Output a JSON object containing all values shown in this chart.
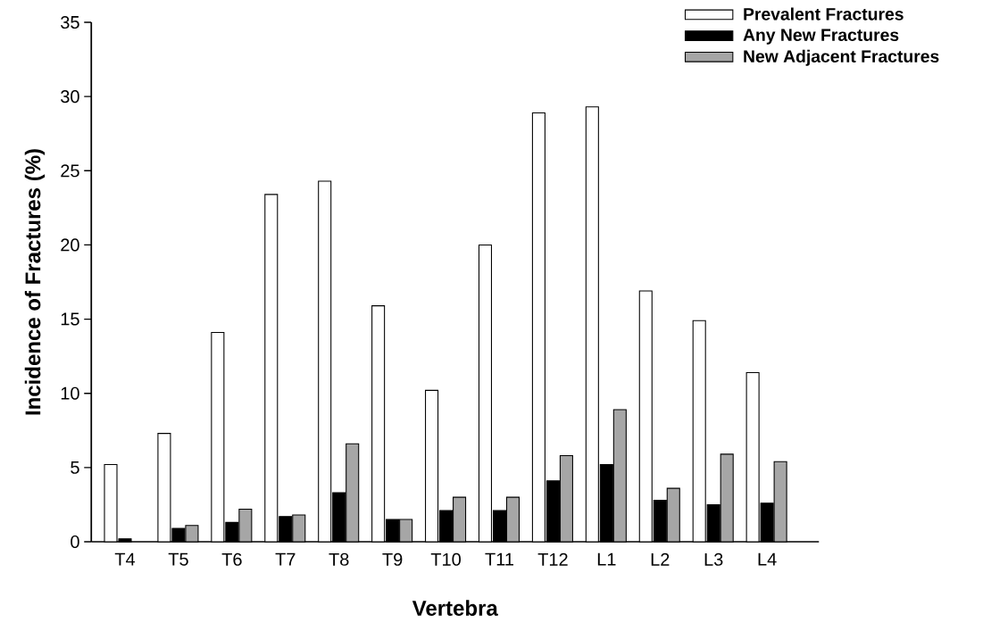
{
  "chart_data": {
    "type": "bar",
    "xlabel": "Vertebra",
    "ylabel": "Incidence of Fractures (%)",
    "categories": [
      "T4",
      "T5",
      "T6",
      "T7",
      "T8",
      "T9",
      "T10",
      "T11",
      "T12",
      "L1",
      "L2",
      "L3",
      "L4"
    ],
    "series": [
      {
        "name": "Prevalent Fractures",
        "color": "#ffffff",
        "values": [
          5.2,
          7.3,
          14.1,
          23.4,
          24.3,
          15.9,
          10.2,
          20.0,
          28.9,
          29.3,
          16.9,
          14.9,
          11.4
        ]
      },
      {
        "name": "Any New Fractures",
        "color": "#000000",
        "values": [
          0.2,
          0.9,
          1.3,
          1.7,
          3.3,
          1.5,
          2.1,
          2.1,
          4.1,
          5.2,
          2.8,
          2.5,
          2.6
        ]
      },
      {
        "name": "New Adjacent Fractures",
        "color": "#a6a6a6",
        "values": [
          null,
          1.1,
          2.2,
          1.8,
          6.6,
          1.5,
          3.0,
          3.0,
          5.8,
          8.9,
          3.6,
          5.9,
          5.4
        ]
      }
    ],
    "ylim": [
      0,
      35
    ],
    "yticks": [
      0,
      5,
      10,
      15,
      20,
      25,
      30,
      35
    ],
    "grid": false,
    "legend": "top right"
  }
}
